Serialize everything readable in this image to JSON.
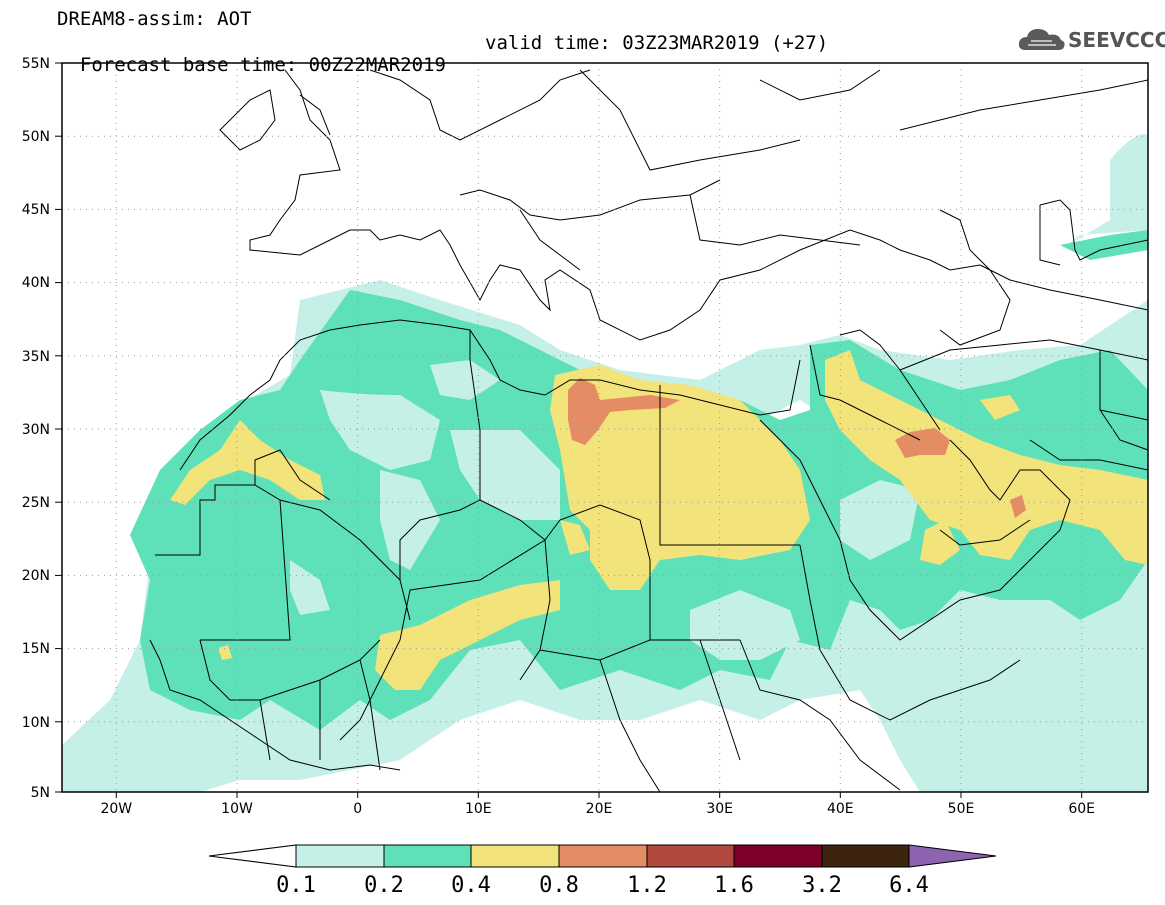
{
  "header": {
    "title": "DREAM8-assim: AOT",
    "base_time": "Forecast base time: 00Z22MAR2019",
    "valid_time": "valid time: 03Z23MAR2019 (+27)"
  },
  "logo": {
    "text": "SEEVCCC",
    "icon": "cloud-icon"
  },
  "map": {
    "lat_labels": [
      "55N",
      "50N",
      "45N",
      "40N",
      "35N",
      "30N",
      "25N",
      "20N",
      "15N",
      "10N",
      "5N"
    ],
    "lon_labels": [
      "20W",
      "10W",
      "0",
      "10E",
      "20E",
      "30E",
      "40E",
      "50E",
      "60E"
    ],
    "lon_range": [
      -25,
      65
    ],
    "lat_range": [
      5,
      55
    ]
  },
  "colorbar": {
    "levels": [
      "0.1",
      "0.2",
      "0.4",
      "0.8",
      "1.2",
      "1.6",
      "3.2",
      "6.4"
    ],
    "colors": [
      "#ffffff",
      "#c5f0e8",
      "#5ee0b9",
      "#f2e47a",
      "#e48c63",
      "#b0483e",
      "#7d0028",
      "#3c2410",
      "#8c64b0"
    ]
  },
  "colors": {
    "c1": "#c5f0e8",
    "c2": "#5ee0b9",
    "c3": "#f2e47a",
    "c4": "#e48c63"
  }
}
